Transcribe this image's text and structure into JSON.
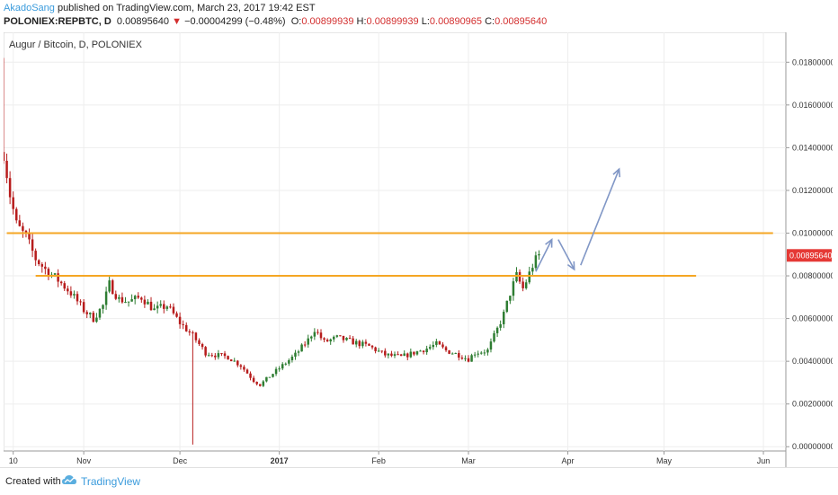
{
  "header": {
    "author": "AkadoSang",
    "published_text": " published on TradingView.com, March 23, 2017 19:42 EST",
    "symbol": "POLONIEX:REPBTC, D",
    "last": "0.00895640",
    "change": "−0.00004299 (−0.48%)",
    "o_label": "O:",
    "o_value": "0.00899939",
    "h_label": "H:",
    "h_value": "0.00899939",
    "l_label": "L:",
    "l_value": "0.00890965",
    "c_label": "C:",
    "c_value": "0.00895640"
  },
  "chart_title": "Augur / Bitcoin, D, POLONIEX",
  "price_badge": "0.00895640",
  "footer": {
    "created_with": "Created with",
    "brand": "TradingView"
  },
  "colors": {
    "up": "#2e7d32",
    "down": "#b71c1c",
    "level_line": "#f5a623",
    "arrow": "#8197c6",
    "badge": "#e53935",
    "grid": "#eeeeee"
  },
  "chart_data": {
    "type": "candlestick",
    "title": "Augur / Bitcoin, D, POLONIEX",
    "x_axis_ticks": [
      "10",
      "Nov",
      "Dec",
      "2017",
      "Feb",
      "Mar",
      "Apr",
      "May",
      "Jun"
    ],
    "x_axis_tick_dates": [
      "2016-10-10",
      "2016-11-01",
      "2016-12-01",
      "2017-01-01",
      "2017-02-01",
      "2017-03-01",
      "2017-04-01",
      "2017-05-01",
      "2017-06-01"
    ],
    "y_axis_ticks": [
      "0.01800000",
      "0.01600000",
      "0.01400000",
      "0.01200000",
      "0.01000000",
      "0.00800000",
      "0.00600000",
      "0.00400000",
      "0.00200000",
      "0.00000000"
    ],
    "y_range": [
      -0.0002,
      0.0194
    ],
    "x_range": [
      "2016-10-07",
      "2017-06-08"
    ],
    "last_price": 0.0089564,
    "grid": true,
    "close_path": [
      [
        "2016-10-07",
        0.0138
      ],
      [
        "2016-10-09",
        0.0118
      ],
      [
        "2016-10-11",
        0.0104
      ],
      [
        "2016-10-14",
        0.0098
      ],
      [
        "2016-10-17",
        0.0088
      ],
      [
        "2016-10-20",
        0.0083
      ],
      [
        "2016-10-24",
        0.0078
      ],
      [
        "2016-10-28",
        0.0072
      ],
      [
        "2016-11-01",
        0.0064
      ],
      [
        "2016-11-04",
        0.006
      ],
      [
        "2016-11-07",
        0.0066
      ],
      [
        "2016-11-09",
        0.0076
      ],
      [
        "2016-11-12",
        0.0069
      ],
      [
        "2016-11-15",
        0.0068
      ],
      [
        "2016-11-19",
        0.007
      ],
      [
        "2016-11-23",
        0.0064
      ],
      [
        "2016-11-27",
        0.0066
      ],
      [
        "2016-12-01",
        0.0058
      ],
      [
        "2016-12-05",
        0.0052
      ],
      [
        "2016-12-09",
        0.0044
      ],
      [
        "2016-12-12",
        0.0043
      ],
      [
        "2016-12-16",
        0.0042
      ],
      [
        "2016-12-20",
        0.0038
      ],
      [
        "2016-12-24",
        0.0031
      ],
      [
        "2016-12-26",
        0.0029
      ],
      [
        "2016-12-29",
        0.0033
      ],
      [
        "2017-01-02",
        0.0038
      ],
      [
        "2017-01-06",
        0.0043
      ],
      [
        "2017-01-10",
        0.005
      ],
      [
        "2017-01-12",
        0.0055
      ],
      [
        "2017-01-15",
        0.0049
      ],
      [
        "2017-01-19",
        0.0051
      ],
      [
        "2017-01-24",
        0.0049
      ],
      [
        "2017-01-29",
        0.0047
      ],
      [
        "2017-02-03",
        0.0043
      ],
      [
        "2017-02-08",
        0.0042
      ],
      [
        "2017-02-12",
        0.0044
      ],
      [
        "2017-02-16",
        0.0046
      ],
      [
        "2017-02-19",
        0.0048
      ],
      [
        "2017-02-22",
        0.0045
      ],
      [
        "2017-02-26",
        0.0043
      ],
      [
        "2017-03-01",
        0.0041
      ],
      [
        "2017-03-03",
        0.0044
      ],
      [
        "2017-03-07",
        0.0045
      ],
      [
        "2017-03-10",
        0.0055
      ],
      [
        "2017-03-12",
        0.0062
      ],
      [
        "2017-03-14",
        0.0072
      ],
      [
        "2017-03-16",
        0.008
      ],
      [
        "2017-03-18",
        0.0074
      ],
      [
        "2017-03-20",
        0.0081
      ],
      [
        "2017-03-21",
        0.0085
      ],
      [
        "2017-03-23",
        0.0089564
      ]
    ],
    "dips": [
      [
        "2016-12-05",
        0.0001
      ]
    ],
    "spikes": [
      [
        "2016-10-07",
        0.0182
      ]
    ],
    "horizontal_levels": [
      {
        "value": 0.01,
        "x_start": "2016-10-08",
        "x_end": "2017-06-04"
      },
      {
        "value": 0.008,
        "x_start": "2016-10-17",
        "x_end": "2017-05-11"
      }
    ],
    "projection_arrows": [
      {
        "from": [
          "2017-03-22",
          0.0082
        ],
        "to": [
          "2017-03-27",
          0.0097
        ]
      },
      {
        "from": [
          "2017-03-29",
          0.0097
        ],
        "to": [
          "2017-04-03",
          0.0083
        ]
      },
      {
        "from": [
          "2017-04-05",
          0.0085
        ],
        "to": [
          "2017-04-17",
          0.013
        ]
      }
    ]
  }
}
